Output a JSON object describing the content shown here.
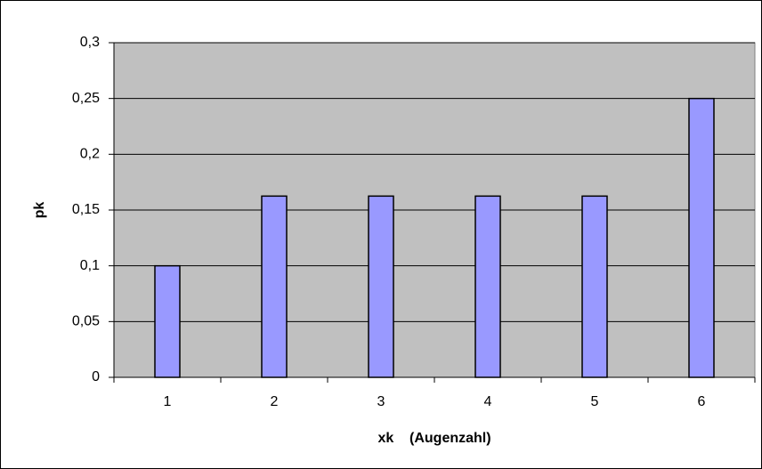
{
  "chart_data": {
    "type": "bar",
    "categories": [
      "1",
      "2",
      "3",
      "4",
      "5",
      "6"
    ],
    "values": [
      0.1,
      0.1625,
      0.1625,
      0.1625,
      0.1625,
      0.25
    ],
    "color": "#9999ff",
    "x_label": "xk    (Augenzahl)",
    "y_label": "pk",
    "ylim": [
      0,
      0.3
    ],
    "yticks": [
      0,
      {
        "value": 0.05,
        "label": "0,05"
      },
      {
        "value": 0.1,
        "label": "0,1"
      },
      {
        "value": 0.15,
        "label": "0,15"
      },
      {
        "value": 0.2,
        "label": "0,2"
      },
      {
        "value": 0.25,
        "label": "0,25"
      },
      {
        "value": 0.3,
        "label": "0,3"
      }
    ],
    "grid": true
  }
}
